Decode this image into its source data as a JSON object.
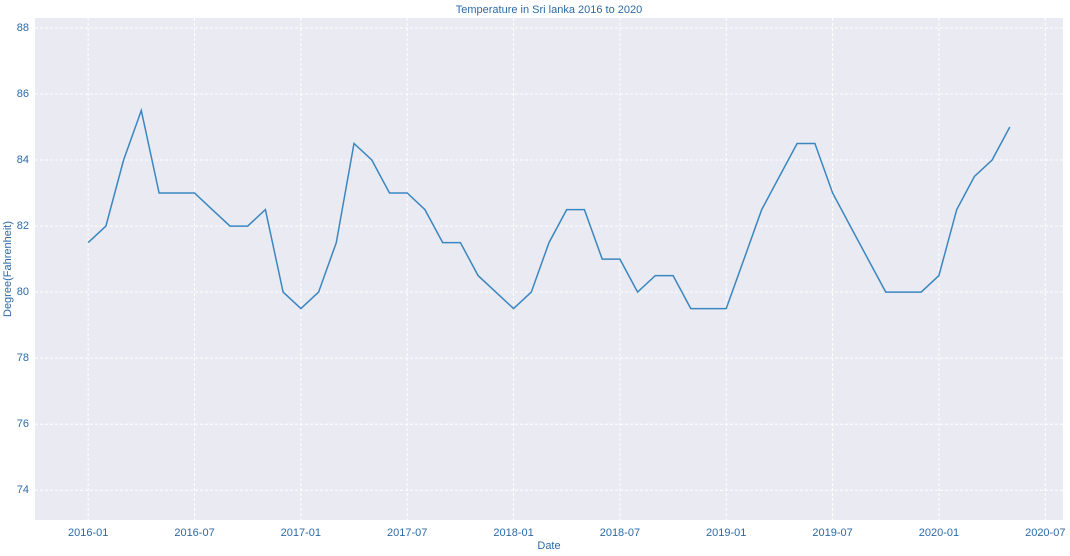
{
  "chart_data": {
    "type": "line",
    "title": "Temperature in Sri lanka 2016 to 2020",
    "xlabel": "Date",
    "ylabel": "Degree(Fahrenheit)",
    "x": [
      "2016-01",
      "2016-02",
      "2016-03",
      "2016-04",
      "2016-05",
      "2016-06",
      "2016-07",
      "2016-08",
      "2016-09",
      "2016-10",
      "2016-11",
      "2016-12",
      "2017-01",
      "2017-02",
      "2017-03",
      "2017-04",
      "2017-05",
      "2017-06",
      "2017-07",
      "2017-08",
      "2017-09",
      "2017-10",
      "2017-11",
      "2017-12",
      "2018-01",
      "2018-02",
      "2018-03",
      "2018-04",
      "2018-05",
      "2018-06",
      "2018-07",
      "2018-08",
      "2018-09",
      "2018-10",
      "2018-11",
      "2018-12",
      "2019-01",
      "2019-02",
      "2019-03",
      "2019-04",
      "2019-05",
      "2019-06",
      "2019-07",
      "2019-08",
      "2019-09",
      "2019-10",
      "2019-11",
      "2019-12",
      "2020-01",
      "2020-02",
      "2020-03",
      "2020-04",
      "2020-05"
    ],
    "series": [
      {
        "name": "Temperature",
        "color": "#3a87c0",
        "values": [
          81.5,
          82,
          84,
          85.5,
          83,
          83,
          83,
          82.5,
          82,
          82,
          82.5,
          80,
          79.5,
          80,
          81.5,
          84.5,
          84,
          83,
          83,
          82.5,
          81.5,
          81.5,
          80.5,
          80,
          79.5,
          80,
          81.5,
          82.5,
          82.5,
          81,
          81,
          80,
          80.5,
          80.5,
          79.5,
          79.5,
          79.5,
          81,
          82.5,
          83.5,
          84.5,
          84.5,
          83,
          82,
          81,
          80,
          80,
          80,
          80.5,
          82.5,
          83.5,
          84,
          85
        ]
      }
    ],
    "xlim": [
      "2015-10",
      "2020-08"
    ],
    "xticks": [
      "2016-01",
      "2016-07",
      "2017-01",
      "2017-07",
      "2018-01",
      "2018-07",
      "2019-01",
      "2019-07",
      "2020-01",
      "2020-07"
    ],
    "ylim": [
      73.1,
      88.3
    ],
    "yticks": [
      74,
      76,
      78,
      80,
      82,
      84,
      86,
      88
    ],
    "grid": true
  }
}
